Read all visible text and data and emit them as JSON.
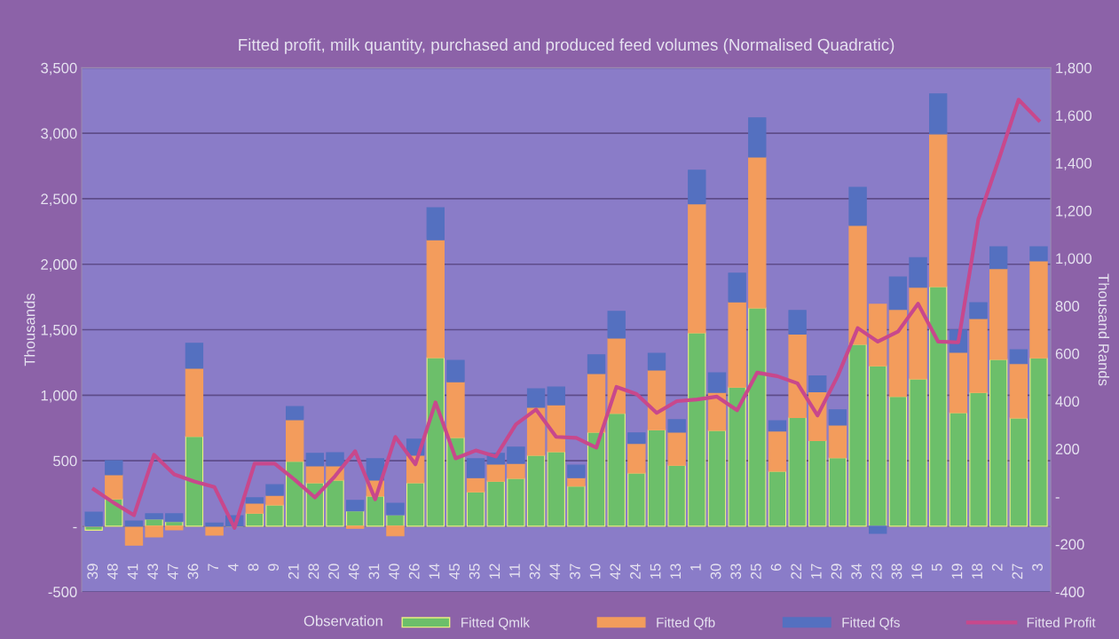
{
  "chart_data": {
    "type": "bar",
    "stacked": true,
    "title": "Fitted profit, milk quantity, purchased and produced feed volumes (Normalised Quadratic)",
    "xlabel": "Observation",
    "ylabel": "Thousands",
    "y2label": "Thousand Rands",
    "categories": [
      "39",
      "48",
      "41",
      "43",
      "47",
      "36",
      "7",
      "4",
      "8",
      "9",
      "21",
      "28",
      "20",
      "46",
      "31",
      "40",
      "26",
      "14",
      "45",
      "35",
      "12",
      "11",
      "32",
      "44",
      "37",
      "10",
      "42",
      "24",
      "15",
      "13",
      "1",
      "30",
      "33",
      "25",
      "6",
      "22",
      "17",
      "29",
      "34",
      "23",
      "38",
      "16",
      "5",
      "19",
      "18",
      "2",
      "27",
      "3"
    ],
    "series": [
      {
        "name": "Fitted Qmlk",
        "color": "#6cbf6a",
        "values": [
          -30,
          209,
          null,
          54,
          35,
          686,
          null,
          null,
          100,
          163,
          496,
          331,
          352,
          117,
          230,
          87,
          331,
          1287,
          678,
          263,
          344,
          366,
          542,
          569,
          306,
          718,
          862,
          407,
          737,
          466,
          1477,
          732,
          1062,
          1667,
          420,
          830,
          654,
          523,
          1388,
          1225,
          990,
          1125,
          1829,
          867,
          1022,
          1274,
          827,
          1285
        ]
      },
      {
        "name": "Fitted Qfb",
        "color": "#f39c5c",
        "values": [
          0,
          184,
          -144,
          -81,
          -27,
          520,
          -68,
          0,
          76,
          73,
          317,
          130,
          109,
          -15,
          122,
          -73,
          211,
          900,
          425,
          108,
          130,
          114,
          366,
          358,
          65,
          447,
          574,
          224,
          455,
          252,
          984,
          290,
          651,
          1151,
          306,
          636,
          372,
          249,
          908,
          469,
          664,
          699,
          1166,
          461,
          563,
          692,
          414,
          740
        ]
      },
      {
        "name": "Fitted Qfs",
        "color": "#5470c0",
        "values": [
          108,
          108,
          40,
          41,
          60,
          190,
          25,
          80,
          41,
          81,
          100,
          95,
          100,
          81,
          163,
          89,
          122,
          244,
          163,
          144,
          82,
          124,
          141,
          135,
          95,
          144,
          204,
          82,
          128,
          95,
          257,
          149,
          219,
          299,
          79,
          181,
          122,
          117,
          292,
          -54,
          249,
          227,
          306,
          170,
          122,
          168,
          106,
          109
        ]
      },
      {
        "name": "Fitted Profit",
        "type": "line",
        "axis": "y2",
        "color": "#c8488c",
        "values": [
          30,
          -27,
          -79,
          175,
          93,
          63,
          40,
          -132,
          138,
          138,
          70,
          -4,
          85,
          190,
          -12,
          250,
          135,
          395,
          160,
          193,
          168,
          303,
          365,
          250,
          246,
          205,
          460,
          430,
          351,
          400,
          407,
          419,
          362,
          520,
          505,
          475,
          340,
          505,
          707,
          650,
          692,
          809,
          650,
          647,
          1164,
          1411,
          1666,
          1579
        ]
      }
    ],
    "ylim": [
      -500,
      3500
    ],
    "yticks": [
      {
        "value": -500,
        "label": "-500"
      },
      {
        "value": 0,
        "label": "-"
      },
      {
        "value": 500,
        "label": "500"
      },
      {
        "value": 1000,
        "label": "1,000"
      },
      {
        "value": 1500,
        "label": "1,500"
      },
      {
        "value": 2000,
        "label": "2,000"
      },
      {
        "value": 2500,
        "label": "2,500"
      },
      {
        "value": 3000,
        "label": "3,000"
      },
      {
        "value": 3500,
        "label": "3,500"
      }
    ],
    "y2lim": [
      -400,
      1800
    ],
    "y2ticks": [
      {
        "value": -400,
        "label": "-400"
      },
      {
        "value": -200,
        "label": "-200"
      },
      {
        "value": 0,
        "label": "-"
      },
      {
        "value": 200,
        "label": "200"
      },
      {
        "value": 400,
        "label": "400"
      },
      {
        "value": 600,
        "label": "600"
      },
      {
        "value": 800,
        "label": "800"
      },
      {
        "value": 1000,
        "label": "1,000"
      },
      {
        "value": 1200,
        "label": "1,200"
      },
      {
        "value": 1400,
        "label": "1,400"
      },
      {
        "value": 1600,
        "label": "1,600"
      },
      {
        "value": 1800,
        "label": "1,800"
      }
    ],
    "grid": "y",
    "legend": "bottom right",
    "marker": "none",
    "line_style": "solid"
  }
}
